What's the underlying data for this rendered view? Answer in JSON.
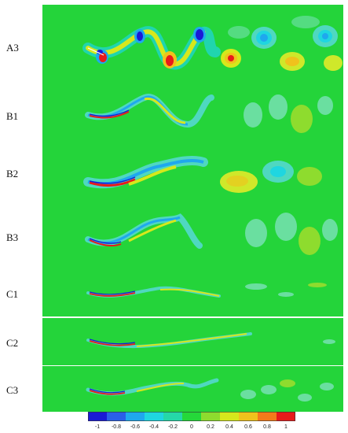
{
  "figure": {
    "panel_labels": [
      "A3",
      "B1",
      "B2",
      "B3",
      "C1",
      "C2",
      "C3"
    ]
  },
  "colorbar": {
    "ticks": [
      "-1",
      "-0.8",
      "-0.6",
      "-0.4",
      "-0.2",
      "0",
      "0.2",
      "0.4",
      "0.6",
      "0.8",
      "1"
    ],
    "colors": [
      "#1a1ad6",
      "#2a5fe8",
      "#1fa8ee",
      "#1fd6e0",
      "#25d8a8",
      "#25d83a",
      "#8edc2e",
      "#d6e81c",
      "#f0c21c",
      "#f47a1a",
      "#e81a1a"
    ]
  },
  "colors": {
    "background": "#24d43a",
    "positive_strong": "#e81a1a",
    "positive_mid": "#f0c21c",
    "positive_weak": "#cfe82a",
    "negative_strong": "#1a1ad6",
    "negative_mid": "#1fa8ee",
    "negative_weak": "#4fd8c0"
  }
}
